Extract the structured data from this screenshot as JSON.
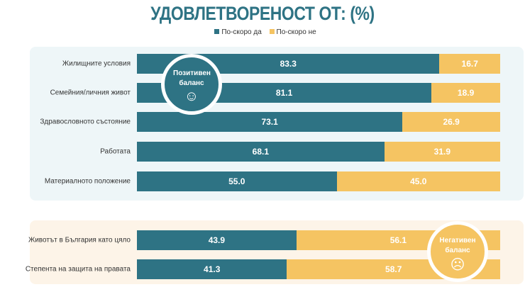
{
  "chart_data": {
    "type": "bar",
    "orientation": "horizontal",
    "stacked": true,
    "title": "УДОВЛЕТВОРЕНОСТ ОТ: (%)",
    "legend": [
      "По-скоро да",
      "По-скоро не"
    ],
    "legend_position": "top",
    "colors": [
      "#2e7384",
      "#f5c462"
    ],
    "xlim": [
      0,
      100
    ],
    "groups": [
      {
        "label": "Позитивен баланс",
        "categories": [
          "Жилищните условия",
          "Семейния/личния живот",
          "Здравословното състояние",
          "Работата",
          "Материалното положение"
        ],
        "series": [
          {
            "name": "По-скоро да",
            "values": [
              83.3,
              81.1,
              73.1,
              68.1,
              55.0
            ]
          },
          {
            "name": "По-скоро не",
            "values": [
              16.7,
              18.9,
              26.9,
              31.9,
              45.0
            ]
          }
        ]
      },
      {
        "label": "Негативен баланс",
        "categories": [
          "Животът в България като цяло",
          "Степента на защита на правата"
        ],
        "series": [
          {
            "name": "По-скоро да",
            "values": [
              43.9,
              41.3
            ]
          },
          {
            "name": "По-скоро не",
            "values": [
              56.1,
              58.7
            ]
          }
        ]
      }
    ]
  }
}
